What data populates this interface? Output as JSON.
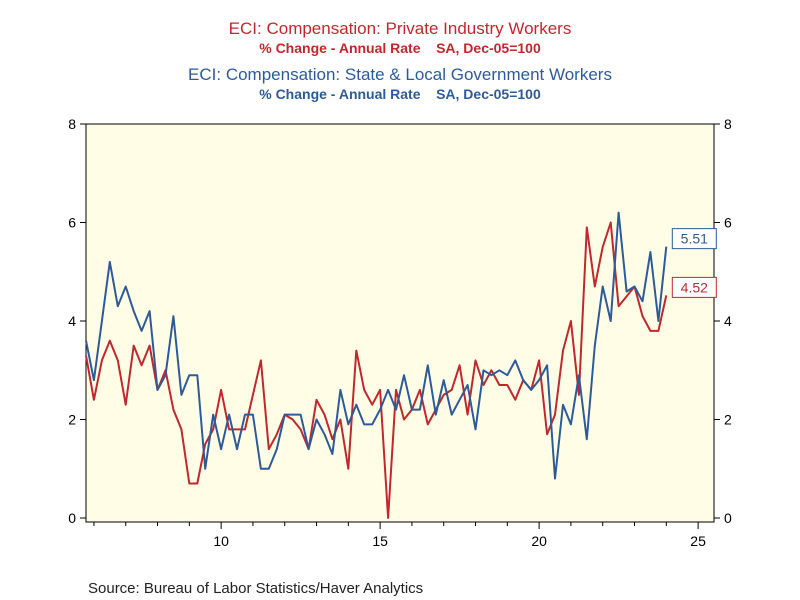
{
  "chart_data": {
    "type": "line",
    "titles": [
      {
        "main": "ECI: Compensation: Private Industry Workers",
        "sub": "% Change - Annual Rate    SA, Dec-05=100",
        "color": "#c0282d"
      },
      {
        "main": "ECI: Compensation: State & Local Government Workers",
        "sub": "% Change - Annual Rate    SA, Dec-05=100",
        "color": "#2d5b9a"
      }
    ],
    "x_ticks": [
      10,
      15,
      20,
      25
    ],
    "x_tick_labels": [
      "10",
      "15",
      "20",
      "25"
    ],
    "xlim": [
      5.75,
      25.5
    ],
    "y_ticks": [
      0,
      2,
      4,
      6,
      8
    ],
    "y_tick_labels": [
      "0",
      "2",
      "4",
      "6",
      "8"
    ],
    "ylim": [
      0,
      8
    ],
    "background": "#fffde6",
    "series": [
      {
        "name": "ECI: Compensation: Private Industry Workers",
        "color": "#c0282d",
        "last_value_label": "4.52",
        "values": [
          [
            5.75,
            3.3
          ],
          [
            6.0,
            2.4
          ],
          [
            6.25,
            3.2
          ],
          [
            6.5,
            3.6
          ],
          [
            6.75,
            3.2
          ],
          [
            7.0,
            2.3
          ],
          [
            7.25,
            3.5
          ],
          [
            7.5,
            3.1
          ],
          [
            7.75,
            3.5
          ],
          [
            8.0,
            2.6
          ],
          [
            8.25,
            3.0
          ],
          [
            8.5,
            2.2
          ],
          [
            8.75,
            1.8
          ],
          [
            9.0,
            0.7
          ],
          [
            9.25,
            0.7
          ],
          [
            9.5,
            1.5
          ],
          [
            9.75,
            1.8
          ],
          [
            10.0,
            2.6
          ],
          [
            10.25,
            1.8
          ],
          [
            10.5,
            1.8
          ],
          [
            10.75,
            1.8
          ],
          [
            11.0,
            2.5
          ],
          [
            11.25,
            3.2
          ],
          [
            11.5,
            1.4
          ],
          [
            11.75,
            1.7
          ],
          [
            12.0,
            2.1
          ],
          [
            12.25,
            2.0
          ],
          [
            12.5,
            1.8
          ],
          [
            12.75,
            1.4
          ],
          [
            13.0,
            2.4
          ],
          [
            13.25,
            2.1
          ],
          [
            13.5,
            1.6
          ],
          [
            13.75,
            2.0
          ],
          [
            14.0,
            1.0
          ],
          [
            14.25,
            3.4
          ],
          [
            14.5,
            2.6
          ],
          [
            14.75,
            2.3
          ],
          [
            15.0,
            2.6
          ],
          [
            15.25,
            0.0
          ],
          [
            15.5,
            2.6
          ],
          [
            15.75,
            2.0
          ],
          [
            16.0,
            2.2
          ],
          [
            16.25,
            2.6
          ],
          [
            16.5,
            1.9
          ],
          [
            16.75,
            2.2
          ],
          [
            17.0,
            2.5
          ],
          [
            17.25,
            2.6
          ],
          [
            17.5,
            3.1
          ],
          [
            17.75,
            2.1
          ],
          [
            18.0,
            3.2
          ],
          [
            18.25,
            2.7
          ],
          [
            18.5,
            3.0
          ],
          [
            18.75,
            2.7
          ],
          [
            19.0,
            2.7
          ],
          [
            19.25,
            2.4
          ],
          [
            19.5,
            2.8
          ],
          [
            19.75,
            2.6
          ],
          [
            20.0,
            3.2
          ],
          [
            20.25,
            1.7
          ],
          [
            20.5,
            2.1
          ],
          [
            20.75,
            3.4
          ],
          [
            21.0,
            4.0
          ],
          [
            21.25,
            2.5
          ],
          [
            21.5,
            5.9
          ],
          [
            21.75,
            4.7
          ],
          [
            22.0,
            5.5
          ],
          [
            22.25,
            6.0
          ],
          [
            22.5,
            4.3
          ],
          [
            22.75,
            4.5
          ],
          [
            23.0,
            4.7
          ],
          [
            23.25,
            4.1
          ],
          [
            23.5,
            3.8
          ],
          [
            23.75,
            3.8
          ],
          [
            24.0,
            4.52
          ]
        ]
      },
      {
        "name": "ECI: Compensation: State & Local Government Workers",
        "color": "#2d5b9a",
        "last_value_label": "5.51",
        "values": [
          [
            5.75,
            3.6
          ],
          [
            6.0,
            2.8
          ],
          [
            6.25,
            4.0
          ],
          [
            6.5,
            5.2
          ],
          [
            6.75,
            4.3
          ],
          [
            7.0,
            4.7
          ],
          [
            7.25,
            4.2
          ],
          [
            7.5,
            3.8
          ],
          [
            7.75,
            4.2
          ],
          [
            8.0,
            2.6
          ],
          [
            8.25,
            2.9
          ],
          [
            8.5,
            4.1
          ],
          [
            8.75,
            2.5
          ],
          [
            9.0,
            2.9
          ],
          [
            9.25,
            2.9
          ],
          [
            9.5,
            1.0
          ],
          [
            9.75,
            2.1
          ],
          [
            10.0,
            1.4
          ],
          [
            10.25,
            2.1
          ],
          [
            10.5,
            1.4
          ],
          [
            10.75,
            2.1
          ],
          [
            11.0,
            2.1
          ],
          [
            11.25,
            1.0
          ],
          [
            11.5,
            1.0
          ],
          [
            11.75,
            1.4
          ],
          [
            12.0,
            2.1
          ],
          [
            12.25,
            2.1
          ],
          [
            12.5,
            2.1
          ],
          [
            12.75,
            1.4
          ],
          [
            13.0,
            2.0
          ],
          [
            13.25,
            1.7
          ],
          [
            13.5,
            1.3
          ],
          [
            13.75,
            2.6
          ],
          [
            14.0,
            1.9
          ],
          [
            14.25,
            2.3
          ],
          [
            14.5,
            1.9
          ],
          [
            14.75,
            1.9
          ],
          [
            15.0,
            2.2
          ],
          [
            15.25,
            2.6
          ],
          [
            15.5,
            2.2
          ],
          [
            15.75,
            2.9
          ],
          [
            16.0,
            2.2
          ],
          [
            16.25,
            2.2
          ],
          [
            16.5,
            3.1
          ],
          [
            16.75,
            2.1
          ],
          [
            17.0,
            2.8
          ],
          [
            17.25,
            2.1
          ],
          [
            17.5,
            2.4
          ],
          [
            17.75,
            2.7
          ],
          [
            18.0,
            1.8
          ],
          [
            18.25,
            3.0
          ],
          [
            18.5,
            2.9
          ],
          [
            18.75,
            3.0
          ],
          [
            19.0,
            2.9
          ],
          [
            19.25,
            3.2
          ],
          [
            19.5,
            2.8
          ],
          [
            19.75,
            2.6
          ],
          [
            20.0,
            2.8
          ],
          [
            20.25,
            3.1
          ],
          [
            20.5,
            0.8
          ],
          [
            20.75,
            2.3
          ],
          [
            21.0,
            1.9
          ],
          [
            21.25,
            2.9
          ],
          [
            21.5,
            1.6
          ],
          [
            21.75,
            3.5
          ],
          [
            22.0,
            4.7
          ],
          [
            22.25,
            4.0
          ],
          [
            22.5,
            6.2
          ],
          [
            22.75,
            4.6
          ],
          [
            23.0,
            4.7
          ],
          [
            23.25,
            4.4
          ],
          [
            23.5,
            5.4
          ],
          [
            23.75,
            4.0
          ],
          [
            24.0,
            5.51
          ]
        ]
      }
    ]
  },
  "source": "Source:  Bureau of Labor Statistics/Haver Analytics"
}
